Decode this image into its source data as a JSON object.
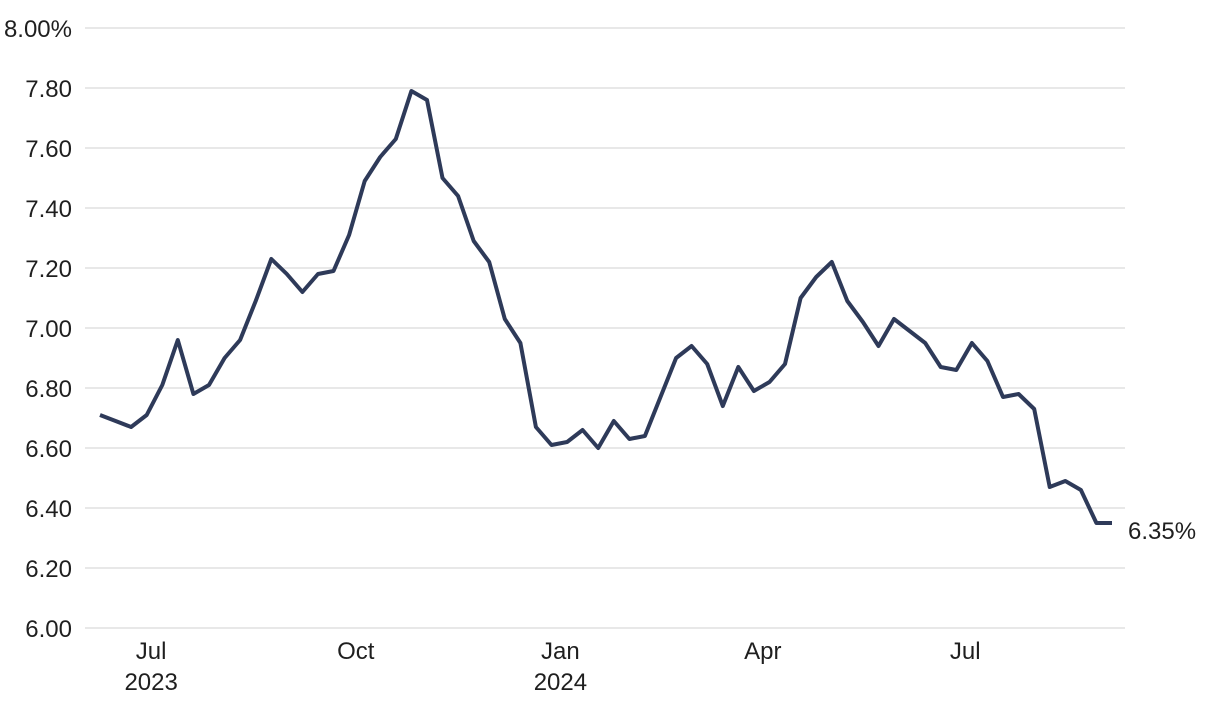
{
  "chart_data": {
    "type": "line",
    "title": "",
    "ylim": [
      6.0,
      8.0
    ],
    "grid": "horizontal",
    "legend": "none",
    "line_color": "#2e3a59",
    "grid_color": "#e8e8e8",
    "text_color": "#1f1f1f",
    "background_color": "#ffffff",
    "end_label": "6.35%",
    "y_ticks": [
      {
        "label": "8.00%",
        "value": 8.0
      },
      {
        "label": "7.80",
        "value": 7.8
      },
      {
        "label": "7.60",
        "value": 7.6
      },
      {
        "label": "7.40",
        "value": 7.4
      },
      {
        "label": "7.20",
        "value": 7.2
      },
      {
        "label": "7.00",
        "value": 7.0
      },
      {
        "label": "6.80",
        "value": 6.8
      },
      {
        "label": "6.60",
        "value": 6.6
      },
      {
        "label": "6.40",
        "value": 6.4
      },
      {
        "label": "6.20",
        "value": 6.2
      },
      {
        "label": "6.00",
        "value": 6.0
      }
    ],
    "x_ticks": [
      {
        "label": "Jul",
        "year": "2023",
        "date": "2023-07-01"
      },
      {
        "label": "Oct",
        "year": "",
        "date": "2023-10-01"
      },
      {
        "label": "Jan",
        "year": "2024",
        "date": "2024-01-01"
      },
      {
        "label": "Apr",
        "year": "",
        "date": "2024-04-01"
      },
      {
        "label": "Jul",
        "year": "",
        "date": "2024-07-01"
      }
    ],
    "x": [
      "2023-06-08",
      "2023-06-15",
      "2023-06-22",
      "2023-06-29",
      "2023-07-06",
      "2023-07-13",
      "2023-07-20",
      "2023-07-27",
      "2023-08-03",
      "2023-08-10",
      "2023-08-17",
      "2023-08-24",
      "2023-08-31",
      "2023-09-07",
      "2023-09-14",
      "2023-09-21",
      "2023-09-28",
      "2023-10-05",
      "2023-10-12",
      "2023-10-19",
      "2023-10-26",
      "2023-11-02",
      "2023-11-09",
      "2023-11-16",
      "2023-11-22",
      "2023-11-30",
      "2023-12-07",
      "2023-12-14",
      "2023-12-21",
      "2023-12-28",
      "2024-01-04",
      "2024-01-11",
      "2024-01-18",
      "2024-01-25",
      "2024-02-01",
      "2024-02-08",
      "2024-02-15",
      "2024-02-22",
      "2024-02-29",
      "2024-03-07",
      "2024-03-14",
      "2024-03-21",
      "2024-03-28",
      "2024-04-04",
      "2024-04-11",
      "2024-04-18",
      "2024-04-25",
      "2024-05-02",
      "2024-05-09",
      "2024-05-16",
      "2024-05-23",
      "2024-05-30",
      "2024-06-06",
      "2024-06-13",
      "2024-06-20",
      "2024-06-27",
      "2024-07-03",
      "2024-07-11",
      "2024-07-18",
      "2024-07-25",
      "2024-08-01",
      "2024-08-08",
      "2024-08-15",
      "2024-08-22",
      "2024-08-29",
      "2024-09-05"
    ],
    "values": [
      6.71,
      6.69,
      6.67,
      6.71,
      6.81,
      6.96,
      6.78,
      6.81,
      6.9,
      6.96,
      7.09,
      7.23,
      7.18,
      7.12,
      7.18,
      7.19,
      7.31,
      7.49,
      7.57,
      7.63,
      7.79,
      7.76,
      7.5,
      7.44,
      7.29,
      7.22,
      7.03,
      6.95,
      6.67,
      6.61,
      6.62,
      6.66,
      6.6,
      6.69,
      6.63,
      6.64,
      6.77,
      6.9,
      6.94,
      6.88,
      6.74,
      6.87,
      6.79,
      6.82,
      6.88,
      7.1,
      7.17,
      7.22,
      7.09,
      7.02,
      6.94,
      7.03,
      6.99,
      6.95,
      6.87,
      6.86,
      6.95,
      6.89,
      6.77,
      6.78,
      6.73,
      6.47,
      6.49,
      6.46,
      6.35,
      6.35
    ]
  }
}
